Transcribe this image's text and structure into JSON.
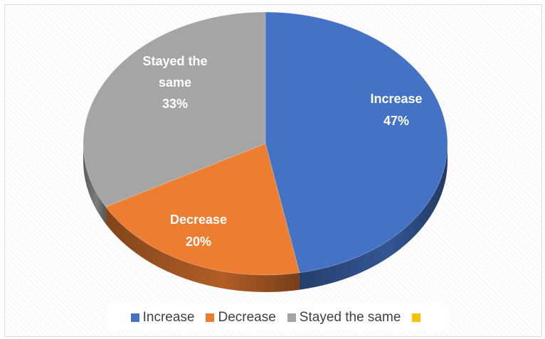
{
  "chart_data": {
    "type": "pie",
    "style": "3d",
    "title": "",
    "categories": [
      "Increase",
      "Decrease",
      "Stayed the same",
      ""
    ],
    "values": [
      47,
      20,
      33,
      0
    ],
    "labels": [
      [
        "Increase",
        "47%"
      ],
      [
        "Decrease",
        "20%"
      ],
      [
        "Stayed the",
        "same",
        "33%"
      ],
      []
    ],
    "colors": [
      "#4472c4",
      "#ed7d31",
      "#a5a5a5",
      "#ffc000"
    ],
    "legend_position": "bottom"
  }
}
